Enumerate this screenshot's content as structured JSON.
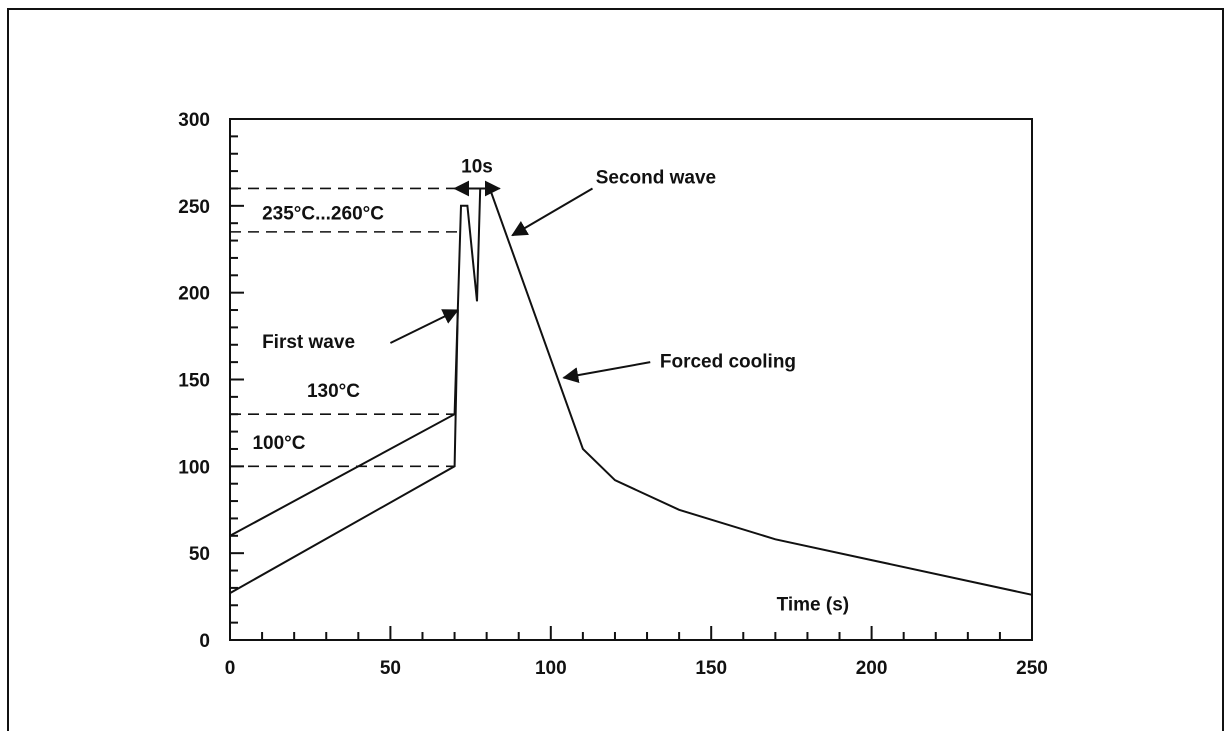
{
  "chart_data": {
    "type": "line",
    "title": "",
    "xlabel": "Time (s)",
    "ylabel": "",
    "xlim": [
      0,
      250
    ],
    "ylim": [
      0,
      300
    ],
    "grid": false,
    "x_ticks": [
      0,
      50,
      100,
      150,
      200,
      250
    ],
    "y_ticks": [
      0,
      50,
      100,
      150,
      200,
      250,
      300
    ],
    "x_tick_labels": [
      "0",
      "50",
      "100",
      "150",
      "200",
      "250"
    ],
    "y_tick_labels": [
      "0",
      "50",
      "100",
      "150",
      "200",
      "250",
      "300"
    ],
    "series": [
      {
        "role": "upper-profile",
        "points": [
          [
            0,
            60
          ],
          [
            70,
            130
          ],
          [
            71,
            190
          ],
          [
            72,
            250
          ],
          [
            74,
            250
          ],
          [
            77,
            195
          ],
          [
            78,
            260
          ],
          [
            81,
            260
          ],
          [
            110,
            110
          ],
          [
            120,
            92
          ],
          [
            140,
            75
          ],
          [
            170,
            58
          ],
          [
            200,
            46
          ],
          [
            250,
            26
          ]
        ]
      },
      {
        "role": "lower-profile",
        "points": [
          [
            0,
            27
          ],
          [
            70,
            100
          ],
          [
            71,
            190
          ]
        ]
      }
    ],
    "reference_lines": [
      {
        "y": 260,
        "x_to": 72
      },
      {
        "y": 235,
        "x_to": 72
      },
      {
        "y": 130,
        "x_to": 70
      },
      {
        "y": 100,
        "x_to": 70
      }
    ],
    "annotations": {
      "duration": {
        "text": "10s",
        "x_from": 70,
        "x_to": 84,
        "y": 260
      },
      "range": {
        "text": "235°C...260°C",
        "x": 10,
        "y": 242
      },
      "upper_temp": {
        "text": "130°C",
        "x": 24,
        "y": 140
      },
      "lower_temp": {
        "text": "100°C",
        "x": 7,
        "y": 110
      },
      "first_wave": {
        "text": "First wave",
        "x": 10,
        "y": 168,
        "arrow_from": [
          50,
          171
        ],
        "arrow_to": [
          71,
          190
        ]
      },
      "second_wave": {
        "text": "Second wave",
        "x": 114,
        "y": 263,
        "arrow_from": [
          113,
          260
        ],
        "arrow_to": [
          88,
          233
        ]
      },
      "forced_cooling": {
        "text": "Forced cooling",
        "x": 134,
        "y": 157,
        "arrow_from": [
          131,
          160
        ],
        "arrow_to": [
          104,
          151
        ]
      }
    }
  }
}
